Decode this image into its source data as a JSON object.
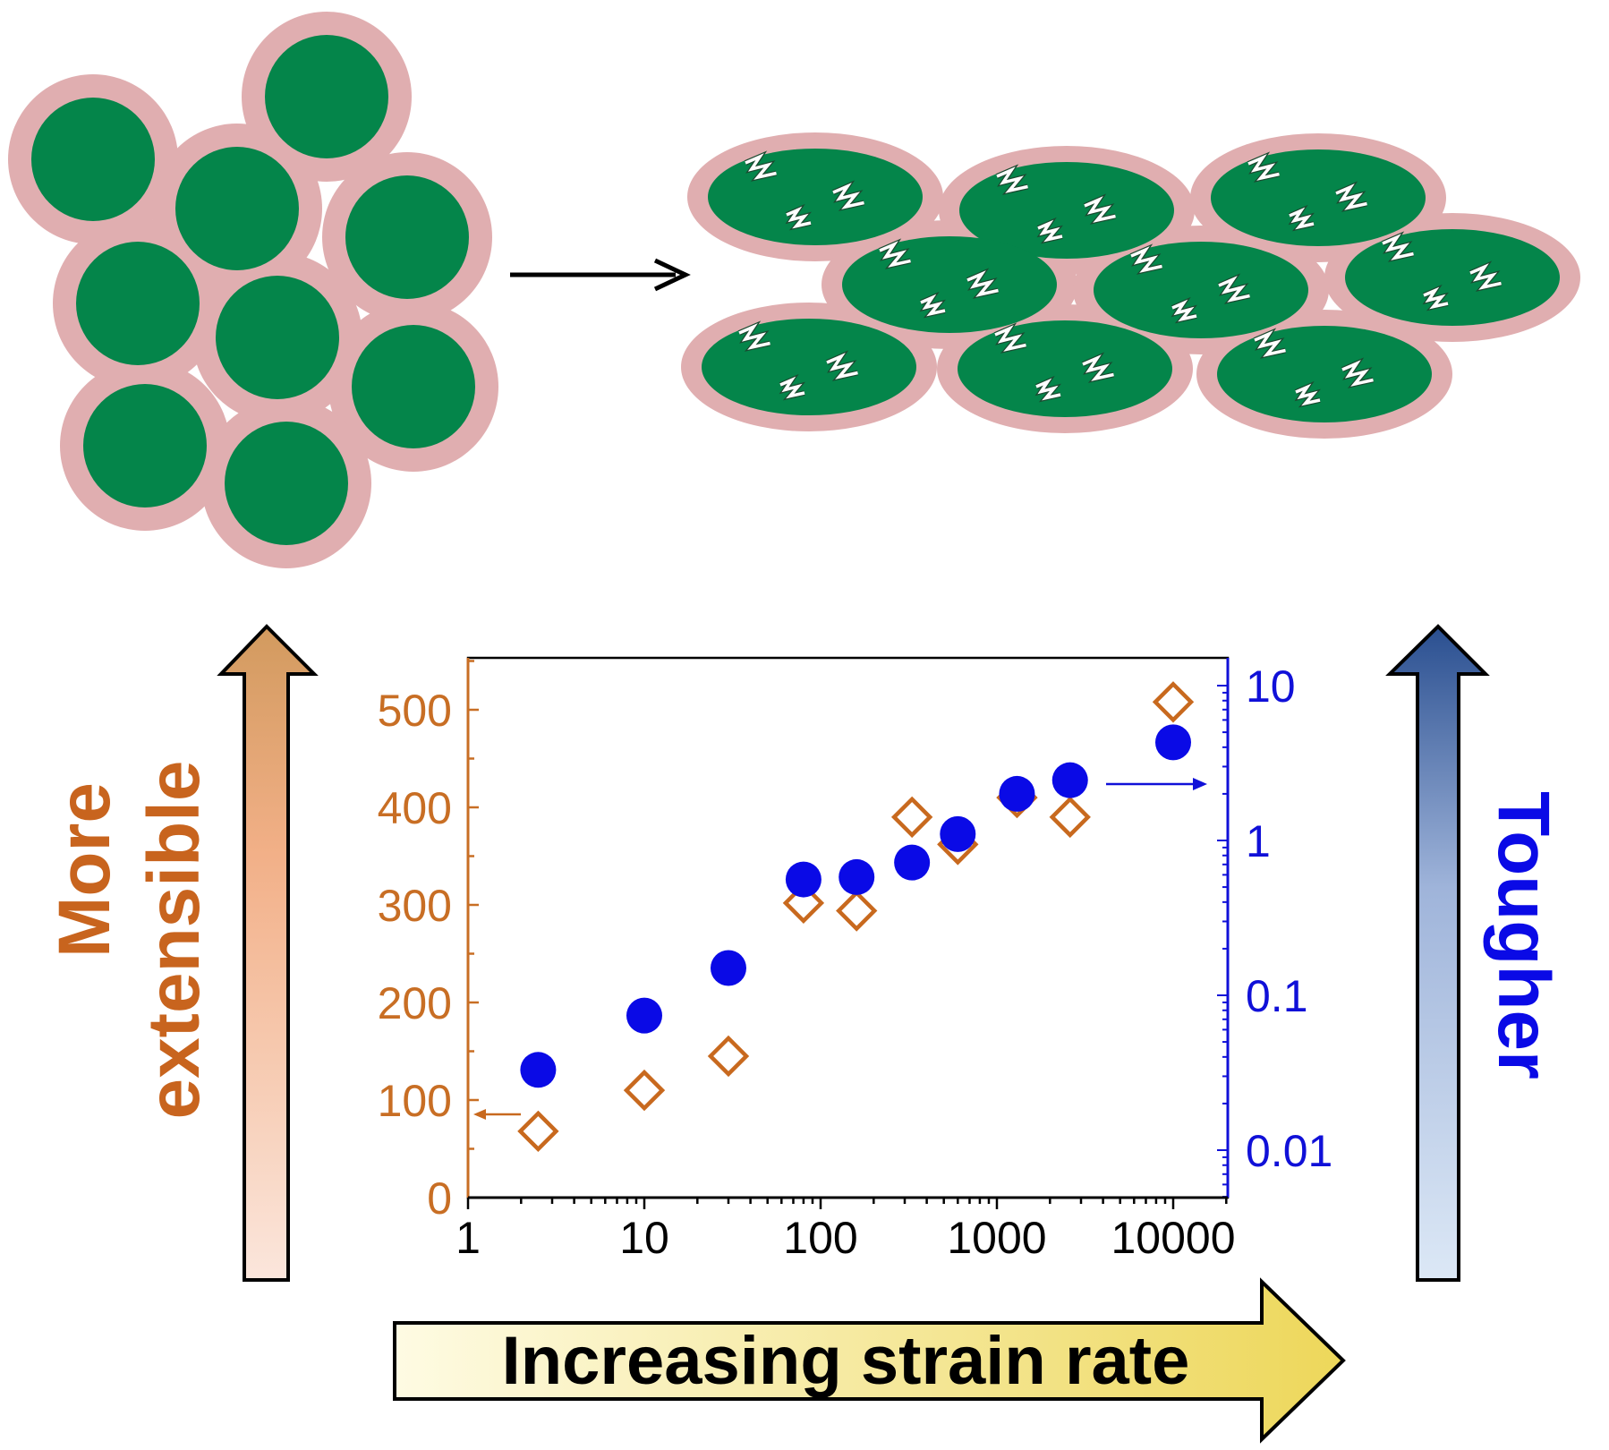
{
  "colors": {
    "particle_shell": "#E0AEB0",
    "particle_core": "#04854A",
    "crack": "#FFFFFF",
    "left_axis": "#C86E24",
    "right_axis": "#1010D8",
    "diamond": "#C8691E",
    "circle": "#0A0AE6",
    "extensible_label": "#C8641E",
    "tougher_label": "#0A0AE6",
    "left_arrow_top": "#D29A5E",
    "left_arrow_mid": "#F2B088",
    "left_arrow_bottom": "#FBE6DC",
    "right_arrow_top": "#2A4F90",
    "right_arrow_mid": "#9FB4DA",
    "right_arrow_bottom": "#DCE8F6",
    "bottom_arrow_left": "#FEFBE3",
    "bottom_arrow_right": "#EDD75A"
  },
  "labels": {
    "left_line1": "More",
    "left_line2": "extensible",
    "right": "Tougher",
    "bottom": "Increasing strain rate"
  },
  "chart_data": {
    "type": "scatter",
    "title": "",
    "xlabel": "",
    "x_scale": "log",
    "xlim": [
      1,
      20000
    ],
    "x_ticks": [
      1,
      10,
      100,
      1000,
      10000
    ],
    "x_tick_labels": [
      "1",
      "10",
      "100",
      "1000",
      "10000"
    ],
    "left_axis": {
      "ylabel": "",
      "scale": "linear",
      "ylim": [
        0,
        550
      ],
      "ticks": [
        0,
        100,
        200,
        300,
        400,
        500
      ],
      "tick_labels": [
        "0",
        "100",
        "200",
        "300",
        "400",
        "500"
      ]
    },
    "right_axis": {
      "ylabel": "",
      "scale": "log",
      "ylim": [
        0.005,
        15
      ],
      "ticks": [
        0.01,
        0.1,
        1,
        10
      ],
      "tick_labels": [
        "0.01",
        "0.1",
        "1",
        "10"
      ]
    },
    "series": [
      {
        "name": "extensibility",
        "axis": "left",
        "marker": "open-diamond",
        "x": [
          2.5,
          10,
          30,
          80,
          160,
          330,
          600,
          1300,
          2600,
          10000
        ],
        "y": [
          68,
          110,
          145,
          302,
          294,
          390,
          362,
          410,
          390,
          508
        ]
      },
      {
        "name": "toughness",
        "axis": "right",
        "marker": "filled-circle",
        "x": [
          2.5,
          10,
          30,
          80,
          160,
          330,
          600,
          1300,
          2600,
          10000
        ],
        "y": [
          0.033,
          0.074,
          0.15,
          0.56,
          0.58,
          0.72,
          1.1,
          2.0,
          2.45,
          4.3
        ]
      }
    ]
  }
}
